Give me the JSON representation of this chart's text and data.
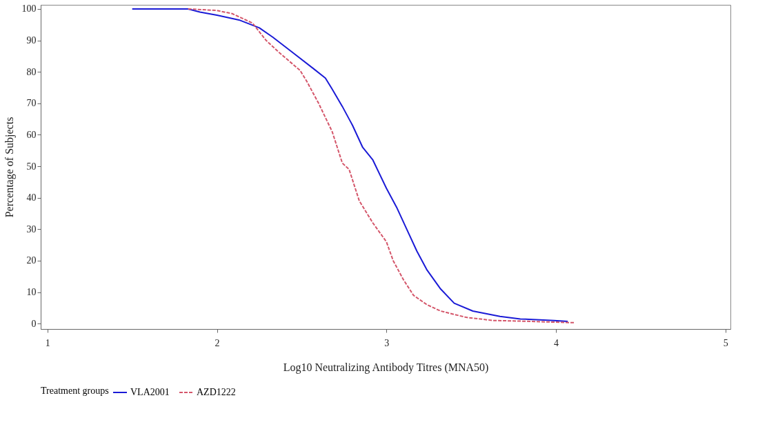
{
  "chart_data": {
    "type": "line",
    "xlabel": "Log10 Neutralizing Antibody Titres (MNA50)",
    "ylabel": "Percentage of Subjects",
    "legend_title": "Treatment groups",
    "legend": "bottom",
    "grid": false,
    "marker": "none",
    "xlim": [
      0.96,
      5.03
    ],
    "ylim": [
      -1.7,
      101.3
    ],
    "xticks": [
      1,
      2,
      3,
      4,
      5
    ],
    "yticks": [
      0,
      10,
      20,
      30,
      40,
      50,
      60,
      70,
      80,
      90,
      100
    ],
    "series": [
      {
        "name": "VLA2001",
        "color": "#1a1ad6",
        "line_style": "solid",
        "x": [
          1.5,
          1.83,
          1.9,
          2.0,
          2.13,
          2.25,
          2.33,
          2.45,
          2.57,
          2.64,
          2.68,
          2.74,
          2.8,
          2.86,
          2.92,
          3.0,
          3.06,
          3.12,
          3.18,
          3.24,
          3.32,
          3.4,
          3.51,
          3.67,
          3.79,
          3.99,
          4.07
        ],
        "values": [
          100,
          100,
          99,
          98,
          96.5,
          94,
          91,
          86,
          81,
          78,
          74.5,
          69,
          63,
          56,
          52,
          43,
          37,
          30,
          23,
          17,
          11,
          6.5,
          4,
          2.3,
          1.5,
          1,
          0.7
        ]
      },
      {
        "name": "AZD1222",
        "color": "#d4566a",
        "line_style": "dashed",
        "x": [
          1.83,
          2.0,
          2.09,
          2.21,
          2.29,
          2.37,
          2.49,
          2.53,
          2.6,
          2.68,
          2.74,
          2.78,
          2.84,
          2.92,
          3.0,
          3.04,
          3.1,
          3.16,
          3.24,
          3.32,
          3.47,
          3.63,
          3.79,
          4.11
        ],
        "values": [
          100,
          99.5,
          98.5,
          95.5,
          90,
          86,
          80.5,
          77,
          70,
          61,
          51,
          49,
          39,
          32,
          26,
          20,
          14,
          9,
          6,
          4,
          2,
          1,
          0.8,
          0.3
        ]
      }
    ]
  }
}
